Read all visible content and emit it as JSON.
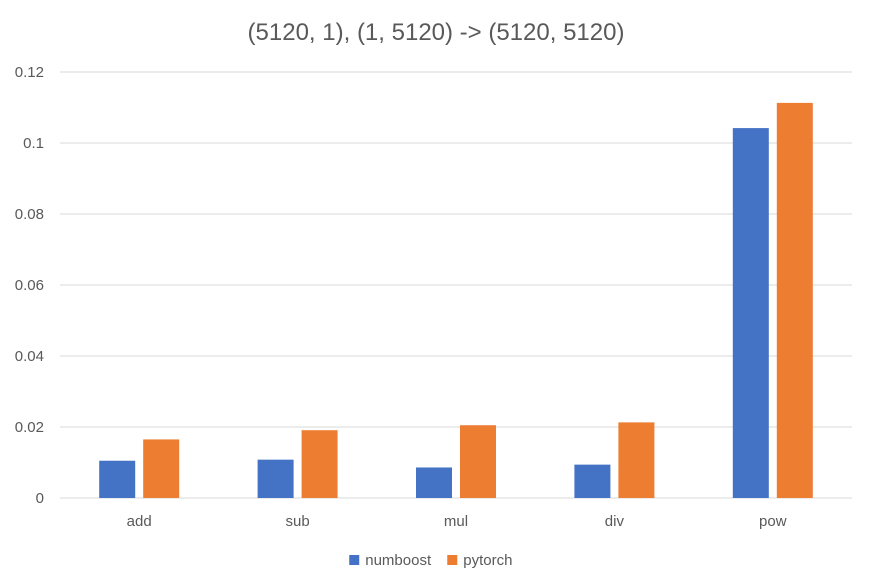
{
  "chart_data": {
    "type": "bar",
    "title": "(5120, 1), (1, 5120) -> (5120, 5120)",
    "xlabel": "",
    "ylabel": "",
    "categories": [
      "add",
      "sub",
      "mul",
      "div",
      "pow"
    ],
    "series": [
      {
        "name": "numboost",
        "color": "#4472c4",
        "values": [
          0.0105,
          0.0108,
          0.0086,
          0.0094,
          0.1042
        ]
      },
      {
        "name": "pytorch",
        "color": "#ed7d31",
        "values": [
          0.0165,
          0.0191,
          0.0205,
          0.0213,
          0.1113
        ]
      }
    ],
    "ylim": [
      0,
      0.12
    ],
    "yticks": [
      "0",
      "0.02",
      "0.04",
      "0.06",
      "0.08",
      "0.1",
      "0.12"
    ],
    "grid": true,
    "legend": "bottom"
  }
}
